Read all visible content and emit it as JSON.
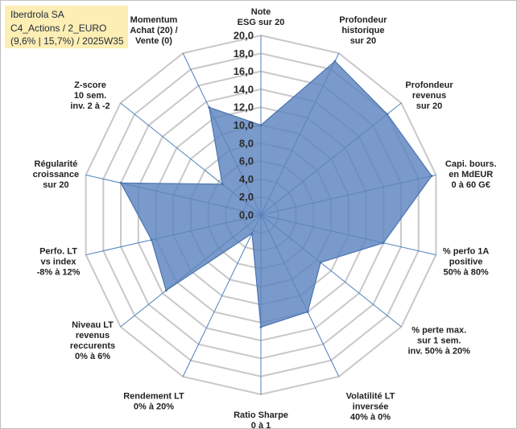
{
  "info_box": {
    "line1": "Iberdrola SA",
    "line2": "C4_Actions / 2_EURO",
    "line3": "(9,6% | 15,7%) / 2025W35"
  },
  "colors": {
    "fill": "#5b84be",
    "stroke": "#4a74b0",
    "grid": "#c8c8c8",
    "spoke": "#4f81bd",
    "box": "#fdeeb4"
  },
  "chart_data": {
    "type": "radar",
    "rmin": 0,
    "rmax": 20,
    "tick_labels": [
      "0,0",
      "2,0",
      "4,0",
      "6,0",
      "8,0",
      "10,0",
      "12,0",
      "14,0",
      "16,0",
      "18,0",
      "20,0"
    ],
    "axes": [
      [
        "Note",
        "ESG sur 20"
      ],
      [
        "Profondeur",
        "historique",
        "sur 20"
      ],
      [
        "Profondeur",
        "revenus",
        "sur 20"
      ],
      [
        "Capi. bours.",
        "en MdEUR",
        "0 à 60 G€"
      ],
      [
        "% perfo 1A",
        "positive",
        "50% à 80%"
      ],
      [
        "% perte max.",
        "sur 1 sem.",
        "inv. 50% à 20%"
      ],
      [
        "Volatilité LT",
        "inversée",
        "40% à 0%"
      ],
      [
        "Ratio Sharpe",
        "0 à 1"
      ],
      [
        "Rendement LT",
        "0% à 20%"
      ],
      [
        "Niveau LT",
        "revenus",
        "reccurents",
        "0% à 6%"
      ],
      [
        "Perfo. LT",
        "vs index",
        "-8% à 12%"
      ],
      [
        "Régularité",
        "croissance",
        "sur 20"
      ],
      [
        "Z-score",
        "10 sem.",
        "inv. 2 à -2"
      ],
      [
        "Momentum",
        "Achat (20) /",
        "Vente (0)"
      ]
    ],
    "values": [
      10.0,
      19.0,
      18.0,
      19.5,
      14.0,
      8.5,
      12.0,
      12.5,
      2.3,
      13.5,
      12.5,
      16.0,
      5.5,
      13.3
    ]
  }
}
